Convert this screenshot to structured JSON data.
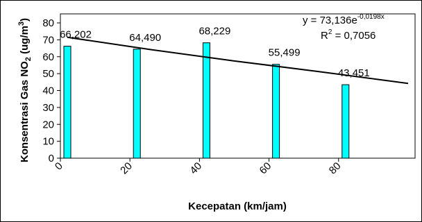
{
  "chart_data": {
    "type": "bar",
    "x_label": "Kecepatan (km/jam)",
    "y_label_parts": [
      "Konsentrasi Gas NO",
      "2",
      " (ug/m",
      "3",
      ")"
    ],
    "x": [
      2,
      22,
      42,
      62,
      82
    ],
    "values": [
      66.202,
      64.49,
      68.229,
      55.499,
      43.451
    ],
    "value_labels": [
      "66,202",
      "64,490",
      "68,229",
      "55,499",
      "43,451"
    ],
    "color": "#00ffff",
    "xlim": [
      0,
      102
    ],
    "xticks": [
      0,
      20,
      40,
      60,
      80
    ],
    "ylim": [
      0,
      80
    ],
    "yticks": [
      0,
      10,
      20,
      30,
      40,
      50,
      60,
      70,
      80
    ],
    "trendline": {
      "x": [
        2,
        26,
        50,
        74,
        100
      ],
      "values": [
        71.5,
        64.2,
        57.5,
        51.3,
        44.2
      ],
      "color": "#000000"
    },
    "equation": "y = 73,136e",
    "equation_exponent": "-0,0198x",
    "r2_label": "R",
    "r2_power": "2",
    "r2_value": " = 0,7056"
  }
}
